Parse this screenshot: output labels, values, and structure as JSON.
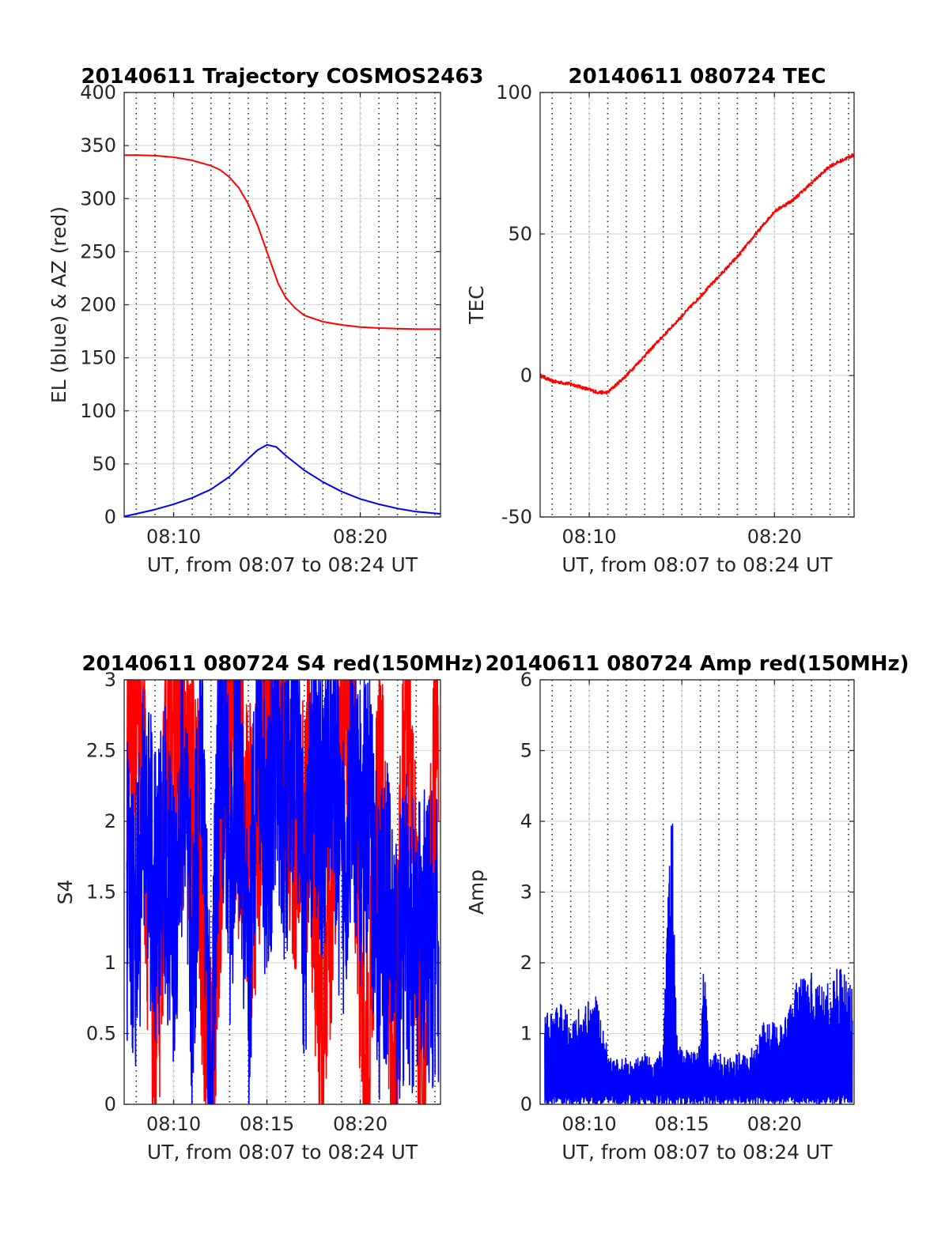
{
  "chart_data": [
    {
      "type": "line",
      "title": "20140611 Trajectory COSMOS2463",
      "xlabel": "UT, from 08:07 to 08:24 UT",
      "ylabel": "EL (blue) & AZ (red)",
      "xlim": [
        7.35,
        24.3
      ],
      "ylim": [
        0,
        400
      ],
      "xticks": [
        {
          "v": 10,
          "label": "08:10"
        },
        {
          "v": 20,
          "label": "08:20"
        }
      ],
      "yticks": [
        0,
        50,
        100,
        150,
        200,
        250,
        300,
        350,
        400
      ],
      "grid": true,
      "series": [
        {
          "kind": "azimuth",
          "color": "#ff0000",
          "x": [
            7.35,
            8,
            9,
            10,
            11,
            12,
            12.5,
            13,
            13.5,
            14,
            14.5,
            15,
            15.3,
            15.6,
            16,
            16.5,
            17,
            18,
            19,
            20,
            21,
            22,
            23,
            24.3
          ],
          "values": [
            341,
            341,
            340.5,
            339,
            336,
            331,
            327,
            320,
            310,
            295,
            275,
            250,
            235,
            220,
            207,
            197,
            190,
            184,
            181,
            179,
            178,
            177.5,
            177,
            177
          ]
        },
        {
          "kind": "elevation",
          "color": "#0000ff",
          "x": [
            7.35,
            8,
            9,
            10,
            11,
            12,
            13,
            14,
            14.5,
            15,
            15.5,
            16,
            17,
            18,
            19,
            20,
            21,
            22,
            23,
            24.3
          ],
          "values": [
            0.5,
            3,
            7,
            12,
            18,
            26,
            38,
            55,
            63,
            68,
            66,
            58,
            44,
            33,
            24,
            17,
            12,
            8,
            5,
            3
          ]
        }
      ]
    },
    {
      "type": "line",
      "title": "20140611 080724 TEC",
      "xlabel": "UT, from 08:07 to 08:24 UT",
      "ylabel": "TEC",
      "xlim": [
        7.35,
        24.3
      ],
      "ylim": [
        -50,
        100
      ],
      "xticks": [
        {
          "v": 10,
          "label": "08:10"
        },
        {
          "v": 20,
          "label": "08:20"
        }
      ],
      "yticks": [
        -50,
        0,
        50,
        100
      ],
      "grid": true,
      "series": [
        {
          "color": "#ff0000",
          "x": [
            7.35,
            8,
            9,
            10,
            10.5,
            11,
            12,
            13,
            14,
            15,
            16,
            17,
            18,
            19,
            20,
            21,
            22,
            23,
            24.3
          ],
          "values": [
            0,
            -2,
            -3,
            -5,
            -6,
            -6,
            0,
            7,
            14,
            21,
            28,
            35,
            42,
            50,
            58,
            62,
            68,
            74,
            78
          ]
        }
      ]
    },
    {
      "type": "line",
      "title": "20140611 080724 S4 red(150MHz)",
      "xlabel": "UT, from 08:07 to 08:24 UT",
      "ylabel": "S4",
      "xlim": [
        7.35,
        24.3
      ],
      "ylim": [
        0,
        3
      ],
      "xticks": [
        {
          "v": 10,
          "label": "08:10"
        },
        {
          "v": 15,
          "label": "08:15"
        },
        {
          "v": 20,
          "label": "08:20"
        }
      ],
      "yticks": [
        {
          "v": 0,
          "label": "0"
        },
        {
          "v": 0.5,
          "label": "0.5"
        },
        {
          "v": 1,
          "label": "1"
        },
        {
          "v": 1.5,
          "label": "1.5"
        },
        {
          "v": 2,
          "label": "2"
        },
        {
          "v": 2.5,
          "label": "2.5"
        },
        {
          "v": 3,
          "label": "3"
        }
      ],
      "grid": true,
      "series": [
        {
          "color": "#ff0000",
          "x": [
            7.5,
            8.2,
            9,
            9.8,
            10.5,
            11.3,
            12,
            12.8,
            13.5,
            14.3,
            15,
            15.8,
            16.5,
            17.3,
            18,
            18.8,
            19.5,
            20.3,
            21,
            21.8,
            22.5,
            23.3,
            24.2
          ],
          "values": [
            2.7,
            3,
            0.2,
            3,
            2.4,
            1.9,
            0,
            3,
            2.2,
            1.6,
            3,
            2.8,
            1.9,
            2.2,
            0.1,
            2.6,
            3,
            0,
            2.5,
            0,
            3,
            0.1,
            2.9
          ]
        },
        {
          "color": "#0000ff",
          "x": [
            7.5,
            8,
            8.5,
            9,
            9.5,
            10,
            10.5,
            11,
            11.5,
            12,
            12.5,
            13,
            13.5,
            14,
            14.5,
            15,
            15.5,
            16,
            16.5,
            17,
            17.5,
            18,
            18.5,
            19,
            19.5,
            20,
            20.5,
            21,
            21.5,
            22,
            22.5,
            23,
            23.5,
            24.2
          ],
          "values": [
            1.5,
            1.3,
            2.1,
            1.4,
            1.8,
            1.2,
            2.3,
            0.9,
            2.7,
            0,
            2.9,
            1.6,
            2.5,
            0.6,
            3,
            1.7,
            2.6,
            1.9,
            2.8,
            1.2,
            2.4,
            2.0,
            2.7,
            1.5,
            2.3,
            1.9,
            2.1,
            1.1,
            1.4,
            0.9,
            1.3,
            1.0,
            1.2,
            1.1
          ]
        }
      ]
    },
    {
      "type": "line",
      "title": "20140611 080724 Amp red(150MHz)",
      "xlabel": "UT, from 08:07 to 08:24 UT",
      "ylabel": "Amp",
      "xlim": [
        7.35,
        24.3
      ],
      "ylim": [
        0,
        6
      ],
      "xticks": [
        {
          "v": 10,
          "label": "08:10"
        },
        {
          "v": 15,
          "label": "08:15"
        },
        {
          "v": 20,
          "label": "08:20"
        }
      ],
      "yticks": [
        0,
        1,
        2,
        3,
        4,
        5,
        6
      ],
      "grid": true,
      "series": [
        {
          "color": "#0000ff",
          "x": [
            7.6,
            8,
            8.5,
            9,
            9.5,
            10,
            10.5,
            11,
            11.5,
            12,
            12.5,
            13,
            13.5,
            14,
            14.3,
            14.5,
            14.7,
            15,
            15.5,
            16,
            16.2,
            16.5,
            17,
            17.5,
            18,
            18.5,
            19,
            19.5,
            20,
            20.5,
            21,
            21.5,
            22,
            22.5,
            23,
            23.5,
            24.2
          ],
          "values": [
            1.3,
            1.2,
            1.4,
            1.2,
            1.3,
            1.4,
            1.5,
            0.7,
            0.6,
            0.65,
            0.6,
            0.7,
            0.6,
            0.8,
            3.2,
            4.2,
            1.0,
            0.8,
            0.7,
            0.8,
            2.0,
            0.7,
            0.7,
            0.6,
            0.7,
            0.7,
            0.8,
            1.2,
            1.1,
            1.1,
            1.6,
            1.7,
            1.8,
            1.6,
            1.7,
            1.9,
            1.6
          ]
        }
      ]
    }
  ]
}
